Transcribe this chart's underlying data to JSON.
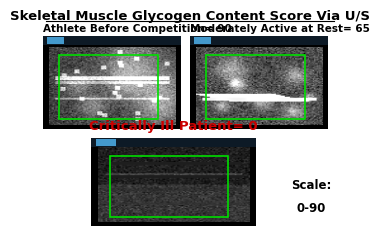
{
  "title": "Skeletal Muscle Glycogen Content Score Via U/S",
  "title_fontsize": 9.5,
  "label1": "Athlete Before Competition= 90",
  "label2": "Moderately Active at Rest= 65",
  "label3": "Critically Ill Patient= 0",
  "scale_line1": "Scale:",
  "scale_line2": "0-90",
  "label1_fontsize": 7.5,
  "label2_fontsize": 7.5,
  "label3_fontsize": 9.5,
  "label3_color": "#cc0000",
  "scale_fontsize": 8.5,
  "bg_color": "#ffffff",
  "green_box": "#00dd00",
  "header_blue": "#4499cc"
}
